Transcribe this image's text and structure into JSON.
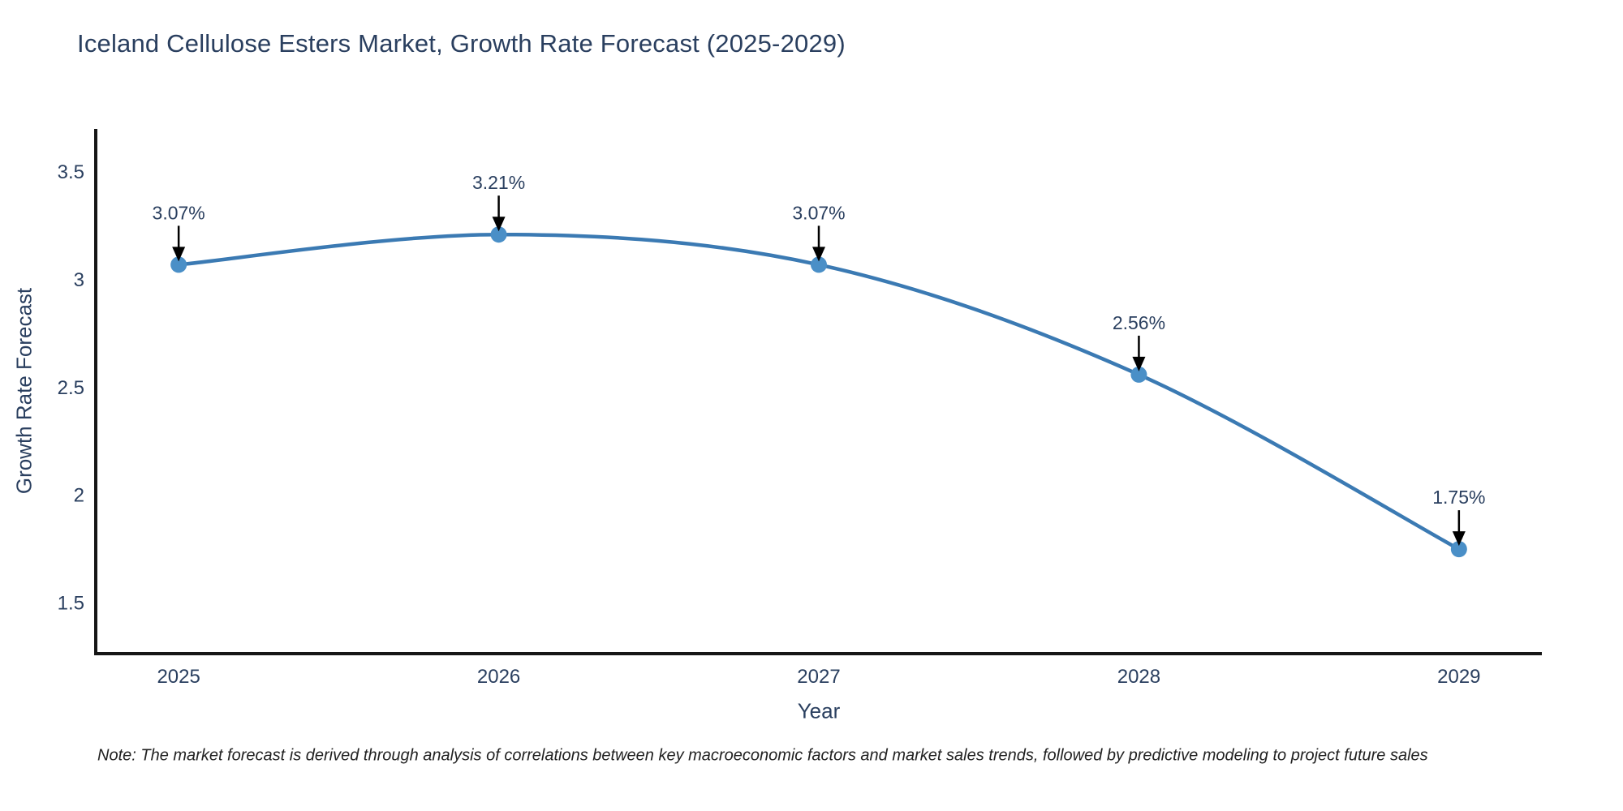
{
  "title": "Iceland Cellulose Esters Market, Growth Rate Forecast (2025-2029)",
  "note": "Note: The market forecast is derived through analysis of correlations between key macroeconomic factors and market sales trends, followed by predictive modeling to project future sales",
  "chart_data": {
    "type": "line",
    "title": "Iceland Cellulose Esters Market, Growth Rate Forecast (2025-2029)",
    "x": [
      2025,
      2026,
      2027,
      2028,
      2029
    ],
    "xticklabels": [
      "2025",
      "2026",
      "2027",
      "2028",
      "2029"
    ],
    "series": [
      {
        "name": "Growth Rate Forecast",
        "values": [
          3.07,
          3.21,
          3.07,
          2.56,
          1.75
        ]
      }
    ],
    "point_labels": [
      "3.07%",
      "3.21%",
      "3.07%",
      "2.56%",
      "1.75%"
    ],
    "xlabel": "Year",
    "ylabel": "Growth Rate Forecast",
    "yticks": [
      1.5,
      2,
      2.5,
      3,
      3.5
    ],
    "ylim": [
      1.265,
      3.7
    ],
    "xlim": [
      2024.741,
      2029.259
    ],
    "grid": false,
    "legend_position": "none",
    "line_shape": "spline",
    "colors": {
      "line": "#3b7ab3",
      "marker": "#4a8fc7",
      "axis_line": "#161616",
      "tick_text": "#2a3f5f",
      "annotation_text": "#2a3f5f",
      "annotation_arrow": "#000000",
      "title_text": "#2a3f5f"
    }
  }
}
